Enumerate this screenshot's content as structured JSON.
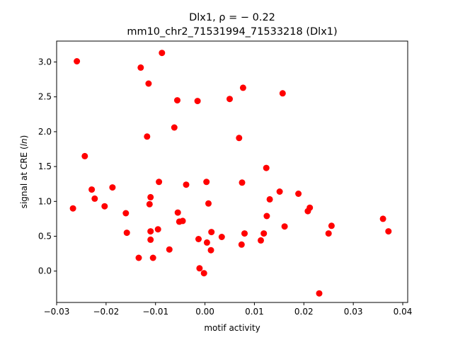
{
  "chart_data": {
    "type": "scatter",
    "title_line1": "Dlx1, ρ = − 0.22",
    "title_line2": "mm10_chr2_71531994_71533218 (Dlx1)",
    "xlabel": "motif activity",
    "ylabel": "signal at CRE (ln)",
    "xlim": [
      -0.03,
      0.041
    ],
    "ylim": [
      -0.45,
      3.3
    ],
    "xticks": [
      -0.03,
      -0.02,
      -0.01,
      0.0,
      0.01,
      0.02,
      0.03,
      0.04
    ],
    "xtick_labels": [
      "−0.03",
      "−0.02",
      "−0.01",
      "0.00",
      "0.01",
      "0.02",
      "0.03",
      "0.04"
    ],
    "yticks": [
      0.0,
      0.5,
      1.0,
      1.5,
      2.0,
      2.5,
      3.0
    ],
    "ytick_labels": [
      "0.0",
      "0.5",
      "1.0",
      "1.5",
      "2.0",
      "2.5",
      "3.0"
    ],
    "grid": false,
    "marker_color": "#ff0000",
    "points": [
      {
        "x": -0.0259,
        "y": 3.01
      },
      {
        "x": -0.0267,
        "y": 0.9
      },
      {
        "x": -0.0243,
        "y": 1.65
      },
      {
        "x": -0.0229,
        "y": 1.17
      },
      {
        "x": -0.0223,
        "y": 1.04
      },
      {
        "x": -0.0203,
        "y": 0.93
      },
      {
        "x": -0.0187,
        "y": 1.2
      },
      {
        "x": -0.016,
        "y": 0.83
      },
      {
        "x": -0.0158,
        "y": 0.55
      },
      {
        "x": -0.0134,
        "y": 0.19
      },
      {
        "x": -0.013,
        "y": 2.92
      },
      {
        "x": -0.0117,
        "y": 1.93
      },
      {
        "x": -0.0114,
        "y": 2.69
      },
      {
        "x": -0.0112,
        "y": 0.96
      },
      {
        "x": -0.011,
        "y": 1.06
      },
      {
        "x": -0.011,
        "y": 0.57
      },
      {
        "x": -0.011,
        "y": 0.45
      },
      {
        "x": -0.0105,
        "y": 0.19
      },
      {
        "x": -0.0095,
        "y": 0.6
      },
      {
        "x": -0.0093,
        "y": 1.28
      },
      {
        "x": -0.0087,
        "y": 3.13
      },
      {
        "x": -0.0072,
        "y": 0.31
      },
      {
        "x": -0.0062,
        "y": 2.06
      },
      {
        "x": -0.0056,
        "y": 2.45
      },
      {
        "x": -0.0055,
        "y": 0.84
      },
      {
        "x": -0.0052,
        "y": 0.71
      },
      {
        "x": -0.0045,
        "y": 0.72
      },
      {
        "x": -0.0038,
        "y": 1.24
      },
      {
        "x": -0.0015,
        "y": 2.44
      },
      {
        "x": -0.0013,
        "y": 0.46
      },
      {
        "x": -0.0011,
        "y": 0.04
      },
      {
        "x": -0.0002,
        "y": -0.03
      },
      {
        "x": 0.0003,
        "y": 1.28
      },
      {
        "x": 0.0004,
        "y": 0.41
      },
      {
        "x": 0.0007,
        "y": 0.97
      },
      {
        "x": 0.0012,
        "y": 0.3
      },
      {
        "x": 0.0013,
        "y": 0.56
      },
      {
        "x": 0.0034,
        "y": 0.49
      },
      {
        "x": 0.005,
        "y": 2.47
      },
      {
        "x": 0.0069,
        "y": 1.91
      },
      {
        "x": 0.0074,
        "y": 0.38
      },
      {
        "x": 0.0075,
        "y": 1.27
      },
      {
        "x": 0.0077,
        "y": 2.63
      },
      {
        "x": 0.008,
        "y": 0.54
      },
      {
        "x": 0.0113,
        "y": 0.44
      },
      {
        "x": 0.0119,
        "y": 0.54
      },
      {
        "x": 0.0124,
        "y": 1.48
      },
      {
        "x": 0.0125,
        "y": 0.79
      },
      {
        "x": 0.0131,
        "y": 1.03
      },
      {
        "x": 0.0151,
        "y": 1.14
      },
      {
        "x": 0.0157,
        "y": 2.55
      },
      {
        "x": 0.0161,
        "y": 0.64
      },
      {
        "x": 0.0189,
        "y": 1.11
      },
      {
        "x": 0.0208,
        "y": 0.86
      },
      {
        "x": 0.0212,
        "y": 0.91
      },
      {
        "x": 0.0231,
        "y": -0.32
      },
      {
        "x": 0.025,
        "y": 0.54
      },
      {
        "x": 0.0256,
        "y": 0.65
      },
      {
        "x": 0.036,
        "y": 0.75
      },
      {
        "x": 0.0371,
        "y": 0.57
      }
    ]
  }
}
